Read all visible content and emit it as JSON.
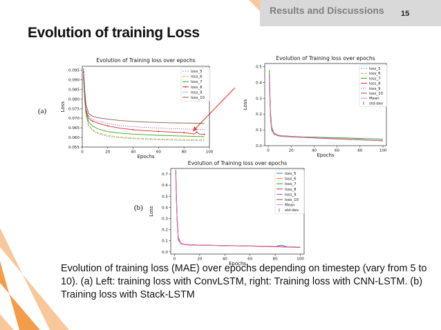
{
  "header": {
    "section": "Results and Discussions",
    "page_number": "15"
  },
  "title": "Evolution of training Loss",
  "labels": {
    "a": "(a)",
    "b": "(b)"
  },
  "caption": "Evolution of training loss (MAE) over epochs depending on timestep (vary from 5 to 10). (a) Left: training loss with ConvLSTM, right: Training loss with CNN-LSTM. (b) Training loss with Stack-LSTM",
  "colors": {
    "accent": "#f39c4a",
    "accent_light": "#f8c79a",
    "header_bg": "#d9d9d9",
    "arrow": "#e8402c"
  },
  "chart_data": [
    {
      "id": "convlstm",
      "type": "line",
      "title": "Evolution of Training loss over epochs",
      "xlabel": "Epochs",
      "ylabel": "Loss",
      "xlim": [
        0,
        100
      ],
      "ylim": [
        0.055,
        0.097
      ],
      "xticks": [
        0,
        20,
        40,
        60,
        80,
        100
      ],
      "yticks": [
        0.055,
        0.06,
        0.065,
        0.07,
        0.075,
        0.08,
        0.085,
        0.09,
        0.095
      ],
      "ytick_labels": [
        "0.055",
        "0.060",
        "0.065",
        "0.070",
        "0.075",
        "0.080",
        "0.085",
        "0.090",
        "0.095"
      ],
      "grid": false,
      "legend": "top-right",
      "series": [
        {
          "name": "loss_5",
          "color": "#6baed6",
          "dash": "2,1.5",
          "x": [
            1,
            2,
            3,
            5,
            8,
            12,
            20,
            30,
            40,
            50,
            60,
            70,
            80,
            90,
            96
          ],
          "y": [
            0.09,
            0.078,
            0.071,
            0.066,
            0.0635,
            0.062,
            0.0605,
            0.0598,
            0.0593,
            0.059,
            0.0588,
            0.0586,
            0.0584,
            0.0583,
            0.0582
          ]
        },
        {
          "name": "loss_6",
          "color": "#f39c12",
          "dash": "4,2",
          "x": [
            1,
            2,
            3,
            5,
            8,
            12,
            20,
            30,
            40,
            50,
            60,
            70,
            80,
            90,
            96
          ],
          "y": [
            0.091,
            0.079,
            0.072,
            0.0665,
            0.064,
            0.0625,
            0.061,
            0.0602,
            0.0597,
            0.0594,
            0.0592,
            0.059,
            0.0589,
            0.0588,
            0.0587
          ]
        },
        {
          "name": "loss_7",
          "color": "#2ca02c",
          "dash": "",
          "x": [
            1,
            2,
            3,
            5,
            8,
            12,
            20,
            30,
            40,
            50,
            60,
            70,
            80,
            90,
            96
          ],
          "y": [
            0.092,
            0.08,
            0.073,
            0.068,
            0.066,
            0.0645,
            0.063,
            0.0622,
            0.0617,
            0.0614,
            0.0611,
            0.0609,
            0.0607,
            0.0605,
            0.0604
          ]
        },
        {
          "name": "loss_8",
          "color": "#d62728",
          "dash": "",
          "marker": true,
          "x": [
            1,
            2,
            3,
            5,
            8,
            12,
            20,
            30,
            40,
            50,
            60,
            70,
            80,
            88,
            90,
            92,
            96
          ],
          "y": [
            0.094,
            0.081,
            0.074,
            0.07,
            0.0685,
            0.0675,
            0.066,
            0.0648,
            0.064,
            0.0635,
            0.0631,
            0.0628,
            0.0625,
            0.0618,
            0.0628,
            0.0617,
            0.0616
          ]
        },
        {
          "name": "loss_9",
          "color": "#9467bd",
          "dash": "1.5,1.5",
          "x": [
            1,
            2,
            3,
            5,
            8,
            12,
            20,
            30,
            40,
            50,
            60,
            70,
            80,
            90,
            96
          ],
          "y": [
            0.095,
            0.082,
            0.075,
            0.071,
            0.0695,
            0.0685,
            0.0672,
            0.0662,
            0.0656,
            0.0652,
            0.0649,
            0.0646,
            0.0644,
            0.0642,
            0.0641
          ]
        },
        {
          "name": "loss_10",
          "color": "#8c564b",
          "dash": "",
          "x": [
            1,
            2,
            3,
            5,
            8,
            12,
            20,
            30,
            40,
            50,
            60,
            70,
            80,
            90,
            96
          ],
          "y": [
            0.096,
            0.084,
            0.077,
            0.0725,
            0.071,
            0.0703,
            0.0695,
            0.0688,
            0.0683,
            0.068,
            0.0678,
            0.0676,
            0.0675,
            0.0674,
            0.0673
          ]
        }
      ]
    },
    {
      "id": "cnnlstm",
      "type": "line",
      "title": "Evolution of Training loss over epochs",
      "xlabel": "Epochs",
      "ylabel": "Loss",
      "xlim": [
        -3,
        103
      ],
      "ylim": [
        0,
        0.52
      ],
      "xticks": [
        0,
        20,
        40,
        60,
        80,
        100
      ],
      "yticks": [
        0,
        0.1,
        0.2,
        0.3,
        0.4,
        0.5
      ],
      "ytick_labels": [
        "0.0",
        "0.1",
        "0.2",
        "0.3",
        "0.4",
        "0.5"
      ],
      "grid": false,
      "legend": "top-right",
      "series": [
        {
          "name": "loss_5",
          "color": "#6baed6",
          "dash": "2,1.5",
          "x": [
            1,
            2,
            3,
            5,
            8,
            12,
            20,
            30,
            40,
            50,
            60,
            70,
            80,
            90,
            100
          ],
          "y": [
            0.42,
            0.18,
            0.1,
            0.075,
            0.065,
            0.06,
            0.056,
            0.053,
            0.05,
            0.047,
            0.044,
            0.041,
            0.038,
            0.035,
            0.032
          ]
        },
        {
          "name": "loss_6",
          "color": "#f39c12",
          "dash": "4,2",
          "x": [
            1,
            2,
            3,
            5,
            8,
            12,
            20,
            30,
            40,
            50,
            60,
            70,
            80,
            90,
            100
          ],
          "y": [
            0.45,
            0.2,
            0.11,
            0.078,
            0.066,
            0.061,
            0.057,
            0.054,
            0.051,
            0.048,
            0.045,
            0.042,
            0.039,
            0.036,
            0.033
          ]
        },
        {
          "name": "loss_7",
          "color": "#2ca02c",
          "dash": "",
          "x": [
            1,
            2,
            3,
            5,
            8,
            12,
            20,
            30,
            40,
            50,
            60,
            70,
            80,
            90,
            100
          ],
          "y": [
            0.48,
            0.22,
            0.12,
            0.08,
            0.068,
            0.063,
            0.059,
            0.056,
            0.054,
            0.052,
            0.05,
            0.048,
            0.046,
            0.044,
            0.042
          ]
        },
        {
          "name": "loss_8",
          "color": "#d62728",
          "dash": "",
          "x": [
            1,
            2,
            3,
            5,
            8,
            12,
            20,
            30,
            40,
            50,
            60,
            70,
            80,
            90,
            100
          ],
          "y": [
            0.4,
            0.17,
            0.1,
            0.074,
            0.064,
            0.059,
            0.055,
            0.052,
            0.049,
            0.046,
            0.043,
            0.04,
            0.037,
            0.034,
            0.031
          ]
        },
        {
          "name": "loss_9",
          "color": "#9467bd",
          "dash": "1.5,1.5",
          "x": [
            1,
            2,
            3,
            5,
            8,
            12,
            20,
            30,
            40,
            50,
            60,
            70,
            80,
            90,
            100
          ],
          "y": [
            0.46,
            0.19,
            0.11,
            0.077,
            0.066,
            0.061,
            0.057,
            0.054,
            0.05,
            0.047,
            0.044,
            0.041,
            0.038,
            0.035,
            0.032
          ]
        },
        {
          "name": "loss_10",
          "color": "#8c564b",
          "dash": "",
          "x": [
            1,
            2,
            3,
            5,
            8,
            12,
            20,
            30,
            40,
            50,
            60,
            70,
            80,
            90,
            100
          ],
          "y": [
            0.44,
            0.2,
            0.11,
            0.076,
            0.066,
            0.06,
            0.056,
            0.053,
            0.05,
            0.046,
            0.043,
            0.04,
            0.037,
            0.034,
            0.031
          ]
        },
        {
          "name": "Mean",
          "color": "#e377c2",
          "dash": "",
          "x": [
            1,
            2,
            3,
            5,
            8,
            12,
            20,
            30,
            40,
            50,
            60,
            70,
            80,
            90,
            100
          ],
          "y": [
            0.44,
            0.19,
            0.11,
            0.077,
            0.066,
            0.061,
            0.057,
            0.054,
            0.051,
            0.048,
            0.045,
            0.042,
            0.039,
            0.036,
            0.033
          ]
        },
        {
          "name": "std-dev",
          "color": "#555555",
          "dash": "",
          "errorbar": true,
          "x": [],
          "y": []
        }
      ]
    },
    {
      "id": "stacklstm",
      "type": "line",
      "title": "Evolution of Training loss over epochs",
      "xlabel": "Epochs",
      "ylabel": "Loss",
      "xlim": [
        -3,
        103
      ],
      "ylim": [
        -0.02,
        0.75
      ],
      "xticks": [
        0,
        20,
        40,
        60,
        80,
        100
      ],
      "yticks": [
        0,
        0.1,
        0.2,
        0.3,
        0.4,
        0.5,
        0.6,
        0.7
      ],
      "ytick_labels": [
        "0.0",
        "0.1",
        "0.2",
        "0.3",
        "0.4",
        "0.5",
        "0.6",
        "0.7"
      ],
      "grid": false,
      "legend": "top-right",
      "series": [
        {
          "name": "loss_5",
          "color": "#1f77b4",
          "dash": "",
          "x": [
            1,
            2,
            3,
            5,
            8,
            12,
            20,
            30,
            40,
            50,
            60,
            70,
            80,
            85,
            88,
            90,
            100
          ],
          "y": [
            0.68,
            0.3,
            0.12,
            0.075,
            0.066,
            0.062,
            0.06,
            0.058,
            0.056,
            0.054,
            0.052,
            0.05,
            0.047,
            0.06,
            0.05,
            0.045,
            0.04
          ]
        },
        {
          "name": "loss_6",
          "color": "#ff7f0e",
          "dash": "",
          "x": [
            1,
            2,
            3,
            5,
            8,
            12,
            20,
            30,
            40,
            50,
            60,
            70,
            80,
            90,
            100
          ],
          "y": [
            0.65,
            0.28,
            0.11,
            0.073,
            0.065,
            0.061,
            0.059,
            0.057,
            0.055,
            0.053,
            0.051,
            0.049,
            0.046,
            0.043,
            0.04
          ]
        },
        {
          "name": "loss_7",
          "color": "#2ca02c",
          "dash": "",
          "x": [
            1,
            2,
            3,
            5,
            8,
            12,
            20,
            30,
            40,
            50,
            60,
            70,
            80,
            90,
            100
          ],
          "y": [
            0.7,
            0.31,
            0.12,
            0.076,
            0.067,
            0.063,
            0.06,
            0.058,
            0.056,
            0.054,
            0.052,
            0.05,
            0.047,
            0.044,
            0.041
          ]
        },
        {
          "name": "loss_8",
          "color": "#d62728",
          "dash": "",
          "x": [
            1,
            2,
            3,
            5,
            8,
            12,
            20,
            30,
            40,
            50,
            60,
            70,
            80,
            90,
            100
          ],
          "y": [
            0.66,
            0.29,
            0.11,
            0.074,
            0.066,
            0.062,
            0.059,
            0.057,
            0.055,
            0.053,
            0.051,
            0.049,
            0.046,
            0.043,
            0.039
          ]
        },
        {
          "name": "loss_9",
          "color": "#9467bd",
          "dash": "",
          "x": [
            1,
            2,
            3,
            5,
            8,
            12,
            20,
            30,
            40,
            50,
            60,
            70,
            80,
            90,
            100
          ],
          "y": [
            0.72,
            0.32,
            0.13,
            0.078,
            0.068,
            0.064,
            0.061,
            0.059,
            0.057,
            0.055,
            0.053,
            0.051,
            0.048,
            0.045,
            0.042
          ]
        },
        {
          "name": "loss_10",
          "color": "#8c564b",
          "dash": "",
          "x": [
            1,
            2,
            3,
            5,
            8,
            12,
            20,
            30,
            40,
            50,
            60,
            70,
            80,
            90,
            100
          ],
          "y": [
            0.74,
            0.33,
            0.13,
            0.078,
            0.068,
            0.064,
            0.061,
            0.059,
            0.057,
            0.055,
            0.053,
            0.051,
            0.048,
            0.045,
            0.042
          ]
        },
        {
          "name": "Mean",
          "color": "#e377c2",
          "dash": "",
          "x": [
            1,
            2,
            3,
            5,
            8,
            12,
            20,
            30,
            40,
            50,
            60,
            70,
            80,
            90,
            100
          ],
          "y": [
            0.69,
            0.3,
            0.12,
            0.076,
            0.067,
            0.063,
            0.06,
            0.058,
            0.056,
            0.054,
            0.052,
            0.05,
            0.047,
            0.044,
            0.041
          ]
        },
        {
          "name": "std-dev",
          "color": "#555555",
          "dash": "",
          "errorbar": true,
          "x": [],
          "y": []
        }
      ]
    }
  ]
}
